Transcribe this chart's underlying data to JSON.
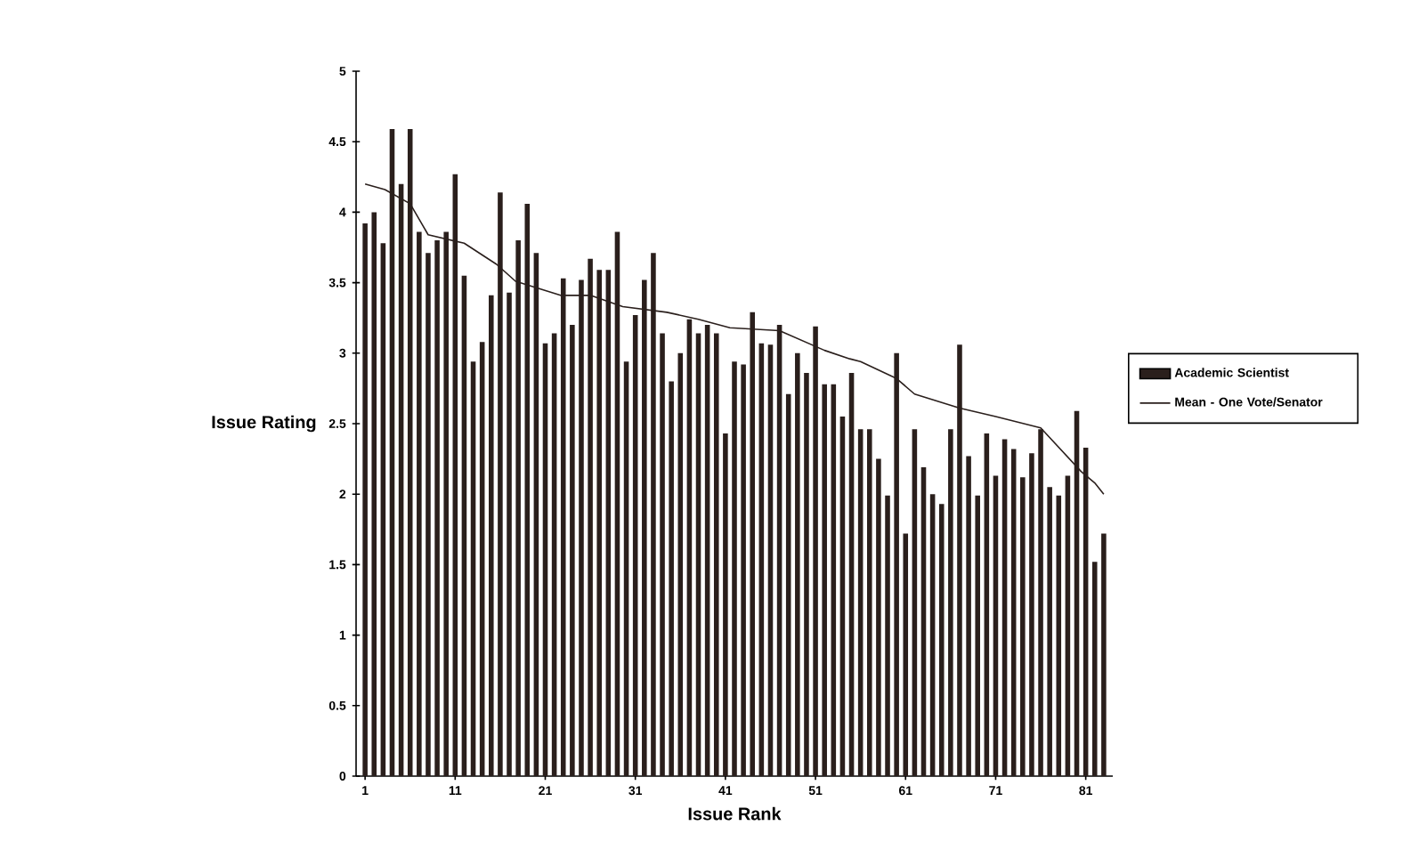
{
  "chart_data": {
    "type": "bar",
    "xlabel": "Issue Rank",
    "ylabel": "Issue Rating",
    "xlim": [
      0,
      84
    ],
    "ylim": [
      0,
      5
    ],
    "xticks": [
      1,
      11,
      21,
      31,
      41,
      51,
      61,
      71,
      81
    ],
    "yticks": [
      0,
      0.5,
      1,
      1.5,
      2,
      2.5,
      3,
      3.5,
      4,
      4.5,
      5
    ],
    "legend": "right",
    "series": [
      {
        "name": "Academic Scientist",
        "color": "#2a1f1c",
        "x": [
          1,
          2,
          3,
          4,
          5,
          6,
          7,
          8,
          9,
          10,
          11,
          12,
          13,
          14,
          15,
          16,
          17,
          18,
          19,
          20,
          21,
          22,
          23,
          24,
          25,
          26,
          27,
          28,
          29,
          30,
          31,
          32,
          33,
          34,
          35,
          36,
          37,
          38,
          39,
          40,
          41,
          42,
          43,
          44,
          45,
          46,
          47,
          48,
          49,
          50,
          51,
          52,
          53,
          54,
          55,
          56,
          57,
          58,
          59,
          60,
          61,
          62,
          63,
          64,
          65,
          66,
          67,
          68,
          69,
          70,
          71,
          72,
          73,
          74,
          75,
          76,
          77,
          78,
          79,
          80,
          81,
          82,
          83
        ],
        "values": [
          3.92,
          4.0,
          3.78,
          4.59,
          4.2,
          4.59,
          3.86,
          3.71,
          3.8,
          3.86,
          4.27,
          3.55,
          2.94,
          3.08,
          3.41,
          4.14,
          3.43,
          3.8,
          4.06,
          3.71,
          3.07,
          3.14,
          3.53,
          3.2,
          3.52,
          3.67,
          3.59,
          3.59,
          3.86,
          2.94,
          3.27,
          3.52,
          3.71,
          3.14,
          2.8,
          3.0,
          3.24,
          3.14,
          3.2,
          3.14,
          2.43,
          2.94,
          2.92,
          3.29,
          3.07,
          3.06,
          3.2,
          2.71,
          3.0,
          2.86,
          3.19,
          2.78,
          2.78,
          2.55,
          2.86,
          2.46,
          2.46,
          2.25,
          1.99,
          3.0,
          1.72,
          2.46,
          2.19,
          2.0,
          1.93,
          2.46,
          3.06,
          2.27,
          1.99,
          2.43,
          2.13,
          2.39,
          2.32,
          2.12,
          2.29,
          2.46,
          2.05,
          1.99,
          2.13,
          2.59,
          2.33,
          1.52,
          1.72
        ]
      },
      {
        "name": "Mean - One Vote/Senator",
        "type": "line",
        "color": "#2a1f1c",
        "x": [
          1,
          3.2,
          6,
          8,
          12,
          15.6,
          17.7,
          22.7,
          26,
          29.6,
          34.5,
          38,
          41.5,
          47,
          52,
          54.8,
          56,
          60,
          62,
          67,
          71,
          76,
          80.5,
          82,
          83
        ],
        "values": [
          4.2,
          4.16,
          4.06,
          3.84,
          3.78,
          3.63,
          3.51,
          3.41,
          3.41,
          3.33,
          3.29,
          3.24,
          3.18,
          3.16,
          3.02,
          2.96,
          2.94,
          2.82,
          2.71,
          2.61,
          2.55,
          2.47,
          2.16,
          2.08,
          2.0
        ]
      }
    ]
  }
}
